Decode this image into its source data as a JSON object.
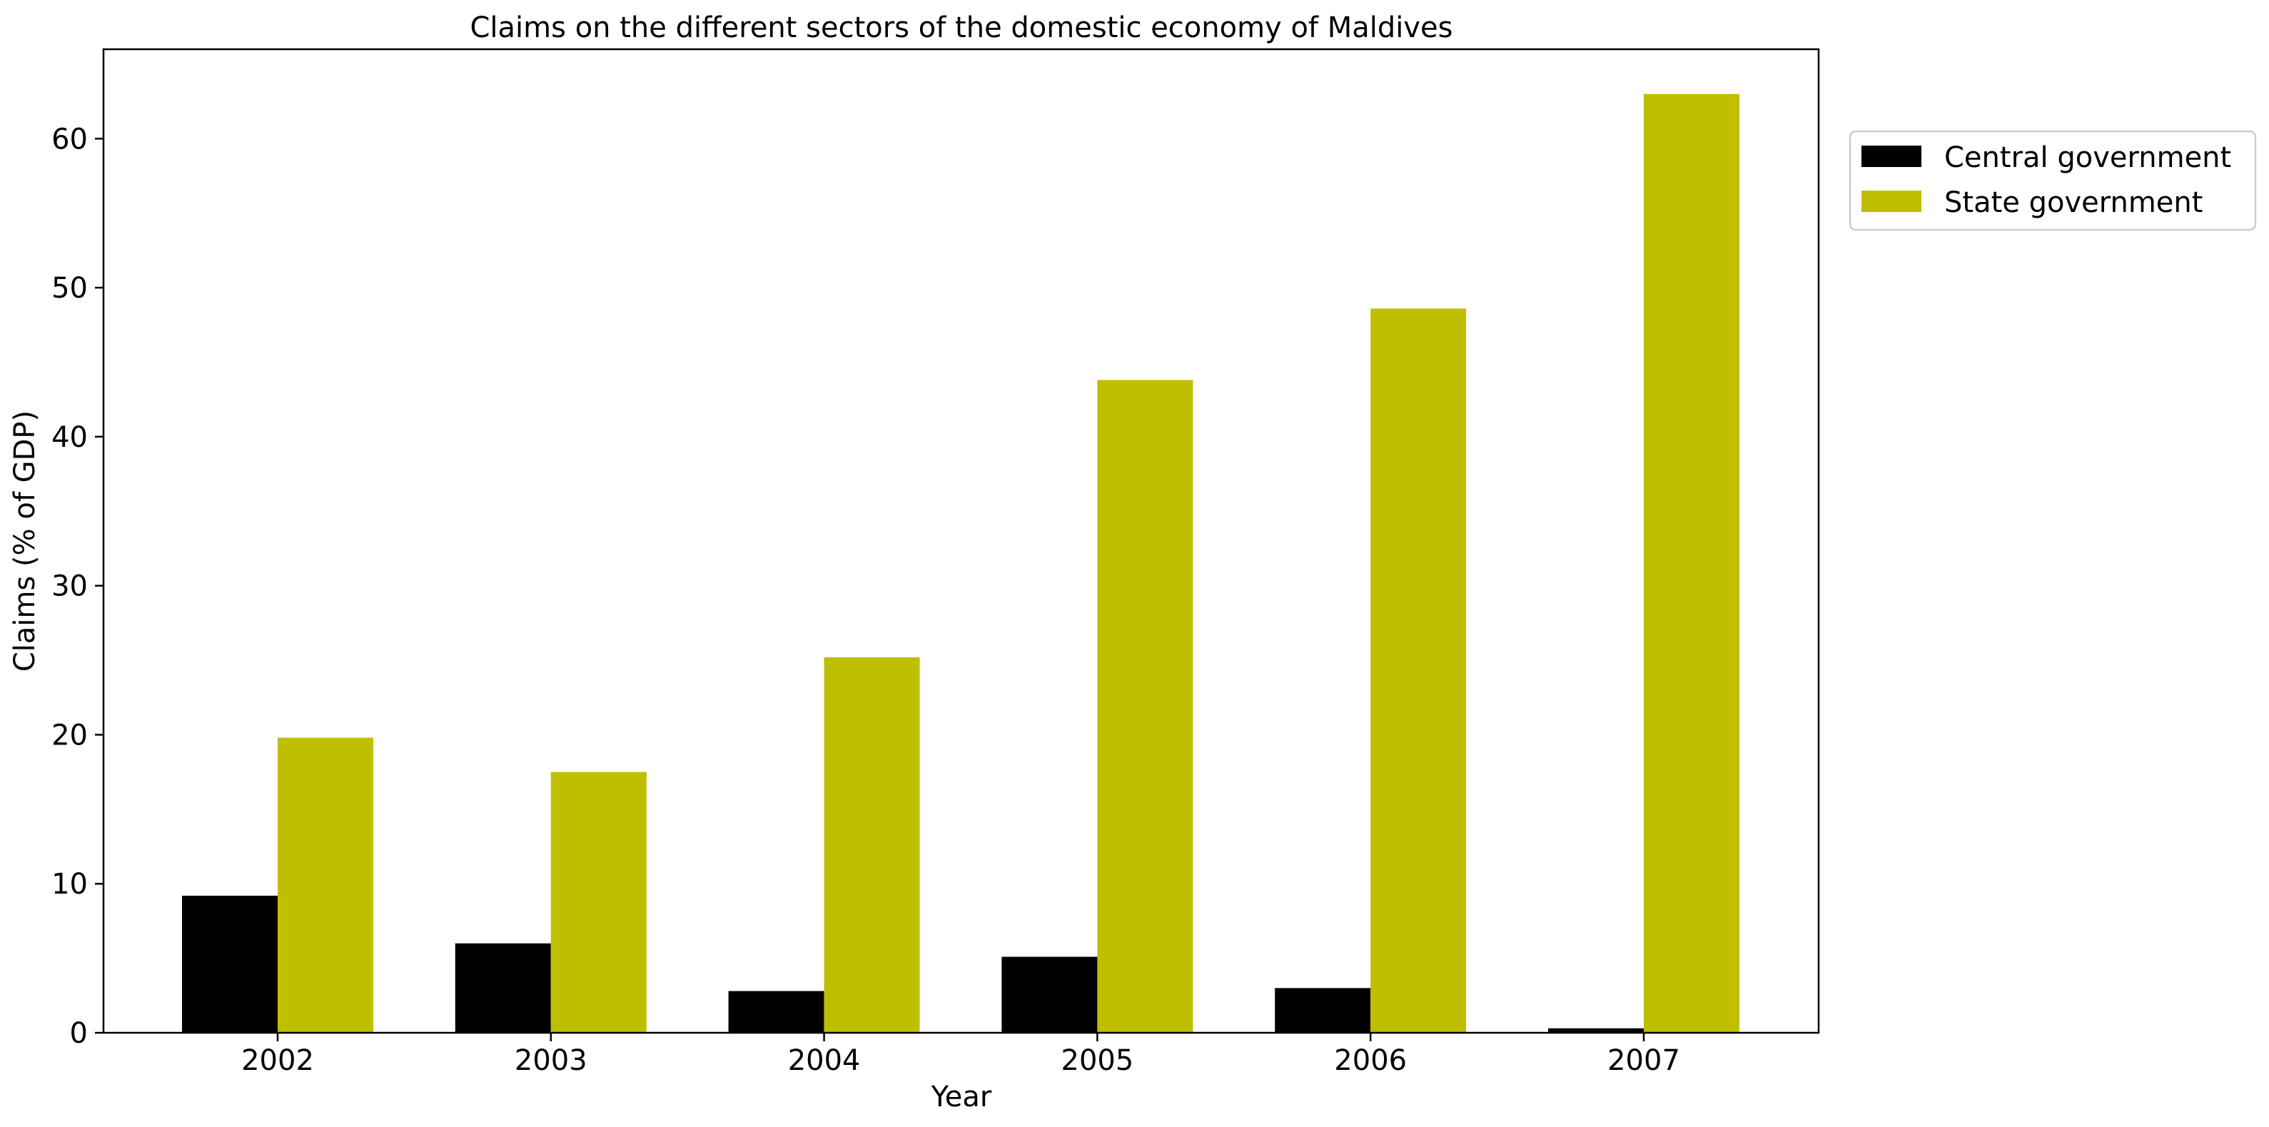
{
  "chart_data": {
    "type": "bar",
    "title": "Claims on the different sectors of the domestic economy of Maldives",
    "xlabel": "Year",
    "ylabel": "Claims (% of GDP)",
    "categories": [
      "2002",
      "2003",
      "2004",
      "2005",
      "2006",
      "2007"
    ],
    "series": [
      {
        "name": "Central government",
        "color": "#000000",
        "values": [
          9.2,
          6.0,
          2.8,
          5.1,
          3.0,
          0.3
        ]
      },
      {
        "name": "State government",
        "color": "#bfbf00",
        "values": [
          19.8,
          17.5,
          25.2,
          43.8,
          48.6,
          63.0
        ]
      }
    ],
    "ylim": [
      0,
      66
    ],
    "yticks": [
      "0",
      "10",
      "20",
      "30",
      "40",
      "50",
      "60"
    ],
    "grid": false,
    "legend_position": "outside top-right"
  }
}
